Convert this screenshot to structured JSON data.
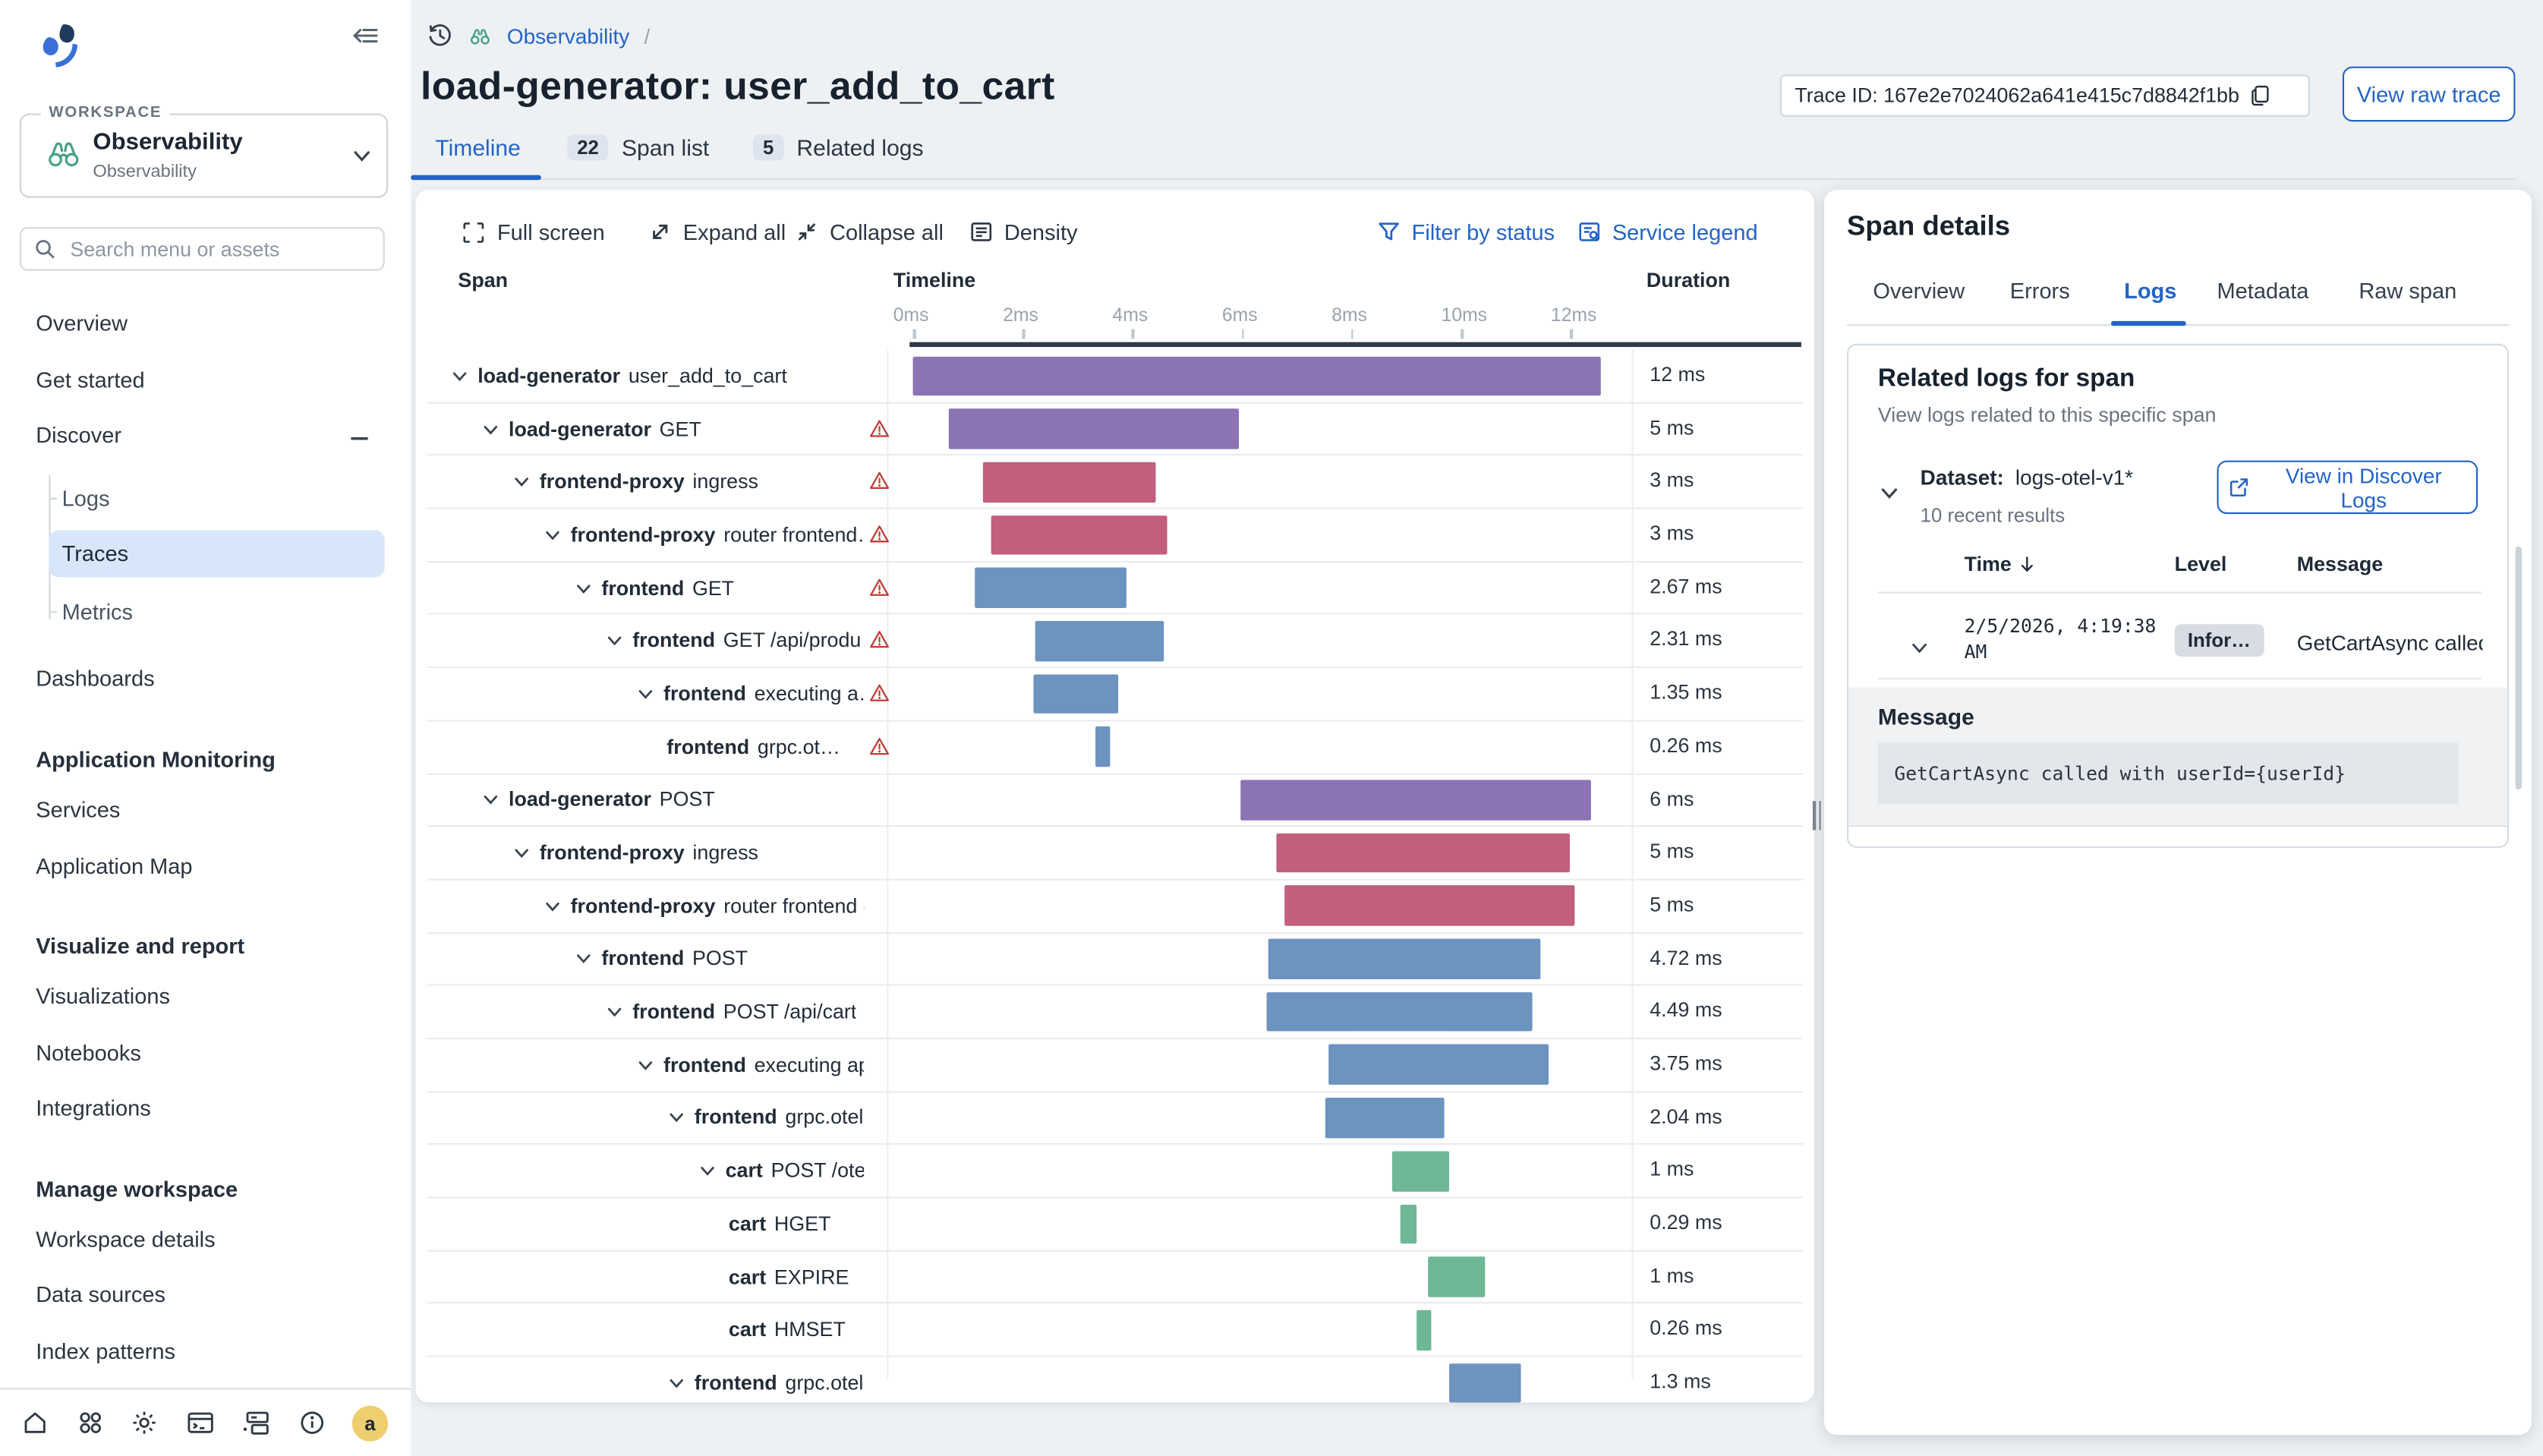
{
  "colors": {
    "accent": "#2464c5",
    "purple": "#8b73b4",
    "pink": "#c15f7d",
    "blue": "#6d93bf",
    "green": "#6fb795",
    "warning": "#c13c34",
    "selected_bg": "#d8e6f9",
    "avatar_bg": "#efce6e"
  },
  "sidebar": {
    "workspace": {
      "legend": "WORKSPACE",
      "title": "Observability",
      "subtitle": "Observability"
    },
    "search_placeholder": "Search menu or assets",
    "items": {
      "overview": "Overview",
      "get_started": "Get started",
      "discover": "Discover",
      "logs": "Logs",
      "traces": "Traces",
      "metrics": "Metrics",
      "dashboards": "Dashboards",
      "h_app": "Application Monitoring",
      "services": "Services",
      "app_map": "Application Map",
      "h_viz": "Visualize and report",
      "visualizations": "Visualizations",
      "notebooks": "Notebooks",
      "integrations": "Integrations",
      "h_manage": "Manage workspace",
      "workspace_details": "Workspace details",
      "data_sources": "Data sources",
      "index_patterns": "Index patterns"
    },
    "avatar_letter": "a"
  },
  "header": {
    "breadcrumb": {
      "workspace": "Observability",
      "separator": "/"
    },
    "title": "load-generator: user_add_to_cart",
    "trace_id": "Trace ID: 167e2e7024062a641e415c7d8842f1bb",
    "view_raw_trace": "View raw trace",
    "tabs": [
      {
        "label": "Timeline"
      },
      {
        "badge": "22",
        "label": "Span list"
      },
      {
        "badge": "5",
        "label": "Related logs"
      }
    ]
  },
  "gantt": {
    "toolbar": {
      "full_screen": "Full screen",
      "expand_all": "Expand all",
      "collapse_all": "Collapse all",
      "density": "Density",
      "filter_by_status": "Filter by status",
      "service_legend": "Service legend"
    },
    "columns": {
      "span": "Span",
      "timeline": "Timeline",
      "duration": "Duration"
    },
    "axis": {
      "max_ms": 13,
      "ticks": [
        {
          "ms": 0,
          "label": "0ms"
        },
        {
          "ms": 2,
          "label": "2ms"
        },
        {
          "ms": 4,
          "label": "4ms"
        },
        {
          "ms": 6,
          "label": "6ms"
        },
        {
          "ms": 8,
          "label": "8ms"
        },
        {
          "ms": 10,
          "label": "10ms"
        },
        {
          "ms": 12,
          "label": "12ms"
        }
      ]
    },
    "spans": [
      {
        "service": "load-generator",
        "operation": "user_add_to_cart",
        "depth": 0,
        "chevron": true,
        "warning": false,
        "start_ms": 0.05,
        "width_ms": 12.55,
        "duration": "12 ms",
        "color": "purple"
      },
      {
        "service": "load-generator",
        "operation": "GET",
        "depth": 1,
        "chevron": true,
        "warning": true,
        "start_ms": 0.7,
        "width_ms": 5.3,
        "duration": "5 ms",
        "color": "purple"
      },
      {
        "service": "frontend-proxy",
        "operation": "ingress",
        "depth": 2,
        "chevron": true,
        "warning": true,
        "start_ms": 1.35,
        "width_ms": 3.15,
        "duration": "3 ms",
        "color": "pink"
      },
      {
        "service": "frontend-proxy",
        "operation": "router frontend…",
        "depth": 3,
        "chevron": true,
        "warning": true,
        "start_ms": 1.5,
        "width_ms": 3.2,
        "duration": "3 ms",
        "color": "pink"
      },
      {
        "service": "frontend",
        "operation": "GET",
        "depth": 4,
        "chevron": true,
        "warning": true,
        "start_ms": 1.2,
        "width_ms": 2.75,
        "duration": "2.67 ms",
        "color": "blue"
      },
      {
        "service": "frontend",
        "operation": "GET /api/produ…",
        "depth": 5,
        "chevron": true,
        "warning": true,
        "start_ms": 2.3,
        "width_ms": 2.35,
        "duration": "2.31 ms",
        "color": "blue"
      },
      {
        "service": "frontend",
        "operation": "executing a…",
        "depth": 6,
        "chevron": true,
        "warning": true,
        "start_ms": 2.25,
        "width_ms": 1.55,
        "duration": "1.35 ms",
        "color": "blue"
      },
      {
        "service": "frontend",
        "operation": "grpc.ot…",
        "depth": 7,
        "chevron": false,
        "warning": true,
        "start_ms": 3.4,
        "width_ms": 0.26,
        "duration": "0.26 ms",
        "color": "blue"
      },
      {
        "service": "load-generator",
        "operation": "POST",
        "depth": 1,
        "chevron": true,
        "warning": false,
        "start_ms": 6.05,
        "width_ms": 6.4,
        "duration": "6 ms",
        "color": "purple"
      },
      {
        "service": "frontend-proxy",
        "operation": "ingress",
        "depth": 2,
        "chevron": true,
        "warning": false,
        "start_ms": 6.7,
        "width_ms": 5.35,
        "duration": "5 ms",
        "color": "pink"
      },
      {
        "service": "frontend-proxy",
        "operation": "router frontend eg…",
        "depth": 3,
        "chevron": true,
        "warning": false,
        "start_ms": 6.85,
        "width_ms": 5.3,
        "duration": "5 ms",
        "color": "pink"
      },
      {
        "service": "frontend",
        "operation": "POST",
        "depth": 4,
        "chevron": true,
        "warning": false,
        "start_ms": 6.55,
        "width_ms": 4.95,
        "duration": "4.72 ms",
        "color": "blue"
      },
      {
        "service": "frontend",
        "operation": "POST /api/cart",
        "depth": 5,
        "chevron": true,
        "warning": false,
        "start_ms": 6.5,
        "width_ms": 4.85,
        "duration": "4.49 ms",
        "color": "blue"
      },
      {
        "service": "frontend",
        "operation": "executing api …",
        "depth": 6,
        "chevron": true,
        "warning": false,
        "start_ms": 7.65,
        "width_ms": 4.0,
        "duration": "3.75 ms",
        "color": "blue"
      },
      {
        "service": "frontend",
        "operation": "grpc.oteld…",
        "depth": 7,
        "chevron": true,
        "warning": false,
        "start_ms": 7.6,
        "width_ms": 2.15,
        "duration": "2.04 ms",
        "color": "blue"
      },
      {
        "service": "cart",
        "operation": "POST /oteld…",
        "depth": 8,
        "chevron": true,
        "warning": false,
        "start_ms": 8.8,
        "width_ms": 1.05,
        "duration": "1 ms",
        "color": "green"
      },
      {
        "service": "cart",
        "operation": "HGET",
        "depth": 9,
        "chevron": false,
        "warning": false,
        "start_ms": 8.95,
        "width_ms": 0.29,
        "duration": "0.29 ms",
        "color": "green"
      },
      {
        "service": "cart",
        "operation": "EXPIRE",
        "depth": 9,
        "chevron": false,
        "warning": false,
        "start_ms": 9.45,
        "width_ms": 1.05,
        "duration": "1 ms",
        "color": "green"
      },
      {
        "service": "cart",
        "operation": "HMSET",
        "depth": 9,
        "chevron": false,
        "warning": false,
        "start_ms": 9.25,
        "width_ms": 0.26,
        "duration": "0.26 ms",
        "color": "green"
      },
      {
        "service": "frontend",
        "operation": "grpc.oteld…",
        "depth": 7,
        "chevron": true,
        "warning": false,
        "start_ms": 9.85,
        "width_ms": 1.3,
        "duration": "1.3 ms",
        "color": "blue"
      }
    ]
  },
  "span_details": {
    "title": "Span details",
    "tabs": [
      "Overview",
      "Errors",
      "Logs",
      "Metadata",
      "Raw span"
    ],
    "active_tab": "Logs",
    "related": {
      "heading": "Related logs for span",
      "subheading": "View logs related to this specific span",
      "dataset_label": "Dataset:",
      "dataset": "logs-otel-v1*",
      "results": "10 recent results",
      "button": "View in Discover Logs"
    },
    "log_table": {
      "time_header": "Time",
      "level_header": "Level",
      "message_header": "Message",
      "row": {
        "time": "2/5/2026, 4:19:38 AM",
        "level": "Infor…",
        "message": "GetCartAsync called with userId={userId}"
      }
    },
    "message_section": {
      "header": "Message",
      "text": "GetCartAsync called with userId={userId}"
    }
  }
}
